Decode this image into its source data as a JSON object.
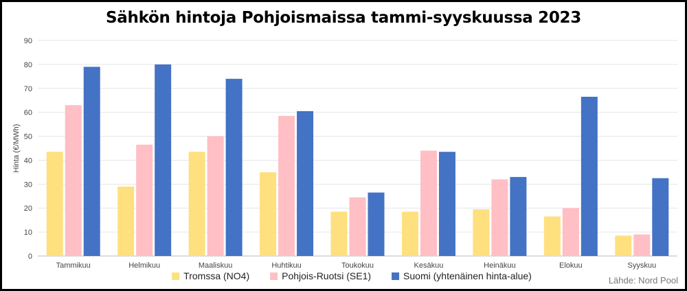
{
  "chart_data": {
    "type": "bar",
    "title": "Sähkön hintoja Pohjoismaissa tammi-syyskuussa 2023",
    "ylabel": "Hinta (€/MWh)",
    "xlabel": "",
    "ylim": [
      0,
      90
    ],
    "yticks": [
      0,
      10,
      20,
      30,
      40,
      50,
      60,
      70,
      80,
      90
    ],
    "grid": true,
    "legend_position": "bottom",
    "categories": [
      "Tammikuu",
      "Helmikuu",
      "Maaliskuu",
      "Huhtikuu",
      "Toukokuu",
      "Kesäkuu",
      "Heinäkuu",
      "Elokuu",
      "Syyskuu"
    ],
    "series": [
      {
        "name": "Tromssa (NO4)",
        "color": "#FFE07F",
        "values": [
          43.5,
          29,
          43.5,
          35,
          18.5,
          18.5,
          19.5,
          16.5,
          8.5
        ]
      },
      {
        "name": "Pohjois-Ruotsi (SE1)",
        "color": "#FFBFC4",
        "values": [
          63,
          46.5,
          50,
          58.5,
          24.5,
          44,
          32,
          20,
          9
        ]
      },
      {
        "name": "Suomi (yhtenäinen hinta-alue)",
        "color": "#4472C4",
        "values": [
          79,
          80,
          74,
          60.5,
          26.5,
          43.5,
          33,
          66.5,
          32.5
        ]
      }
    ],
    "source": "Lähde: Nord Pool"
  }
}
